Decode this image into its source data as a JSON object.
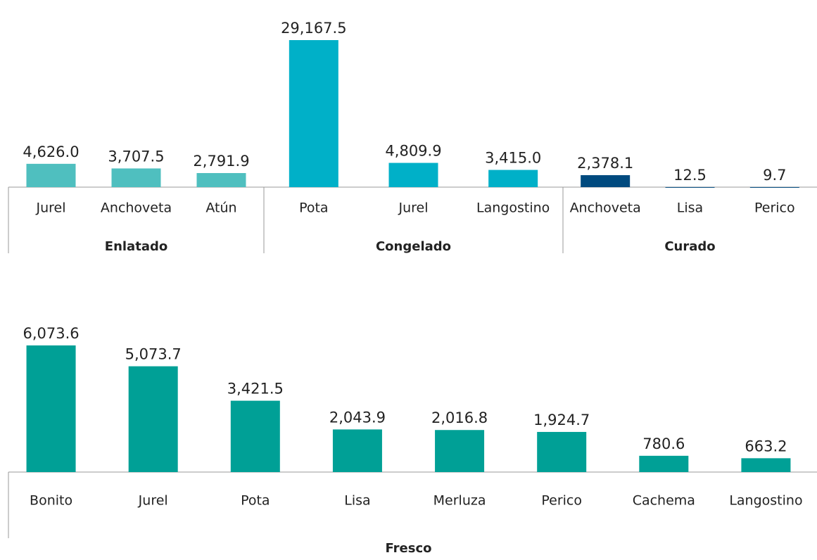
{
  "chart_data": [
    {
      "type": "bar",
      "groups": [
        {
          "name": "Enlatado",
          "color": "#4fbfbf",
          "categories": [
            "Jurel",
            "Anchoveta",
            "Atún"
          ],
          "values": [
            4626.0,
            3707.5,
            2791.9
          ],
          "value_labels": [
            "4,626.0",
            "3,707.5",
            "2,791.9"
          ]
        },
        {
          "name": "Congelado",
          "color": "#00b0c8",
          "categories": [
            "Pota",
            "Jurel",
            "Langostino"
          ],
          "values": [
            29167.5,
            4809.9,
            3415.0
          ],
          "value_labels": [
            "29,167.5",
            "4,809.9",
            "3,415.0"
          ]
        },
        {
          "name": "Curado",
          "color": "#004a7f",
          "categories": [
            "Anchoveta",
            "Lisa",
            "Perico"
          ],
          "values": [
            2378.1,
            12.5,
            9.7
          ],
          "value_labels": [
            "2,378.1",
            "12.5",
            "9.7"
          ]
        }
      ]
    },
    {
      "type": "bar",
      "groups": [
        {
          "name": "Fresco",
          "color": "#00a096",
          "categories": [
            "Bonito",
            "Jurel",
            "Pota",
            "Lisa",
            "Merluza",
            "Perico",
            "Cachema",
            "Langostino"
          ],
          "values": [
            6073.6,
            5073.7,
            3421.5,
            2043.9,
            2016.8,
            1924.7,
            780.6,
            663.2
          ],
          "value_labels": [
            "6,073.6",
            "5,073.7",
            "3,421.5",
            "2,043.9",
            "2,016.8",
            "1,924.7",
            "780.6",
            "663.2"
          ]
        }
      ]
    }
  ]
}
